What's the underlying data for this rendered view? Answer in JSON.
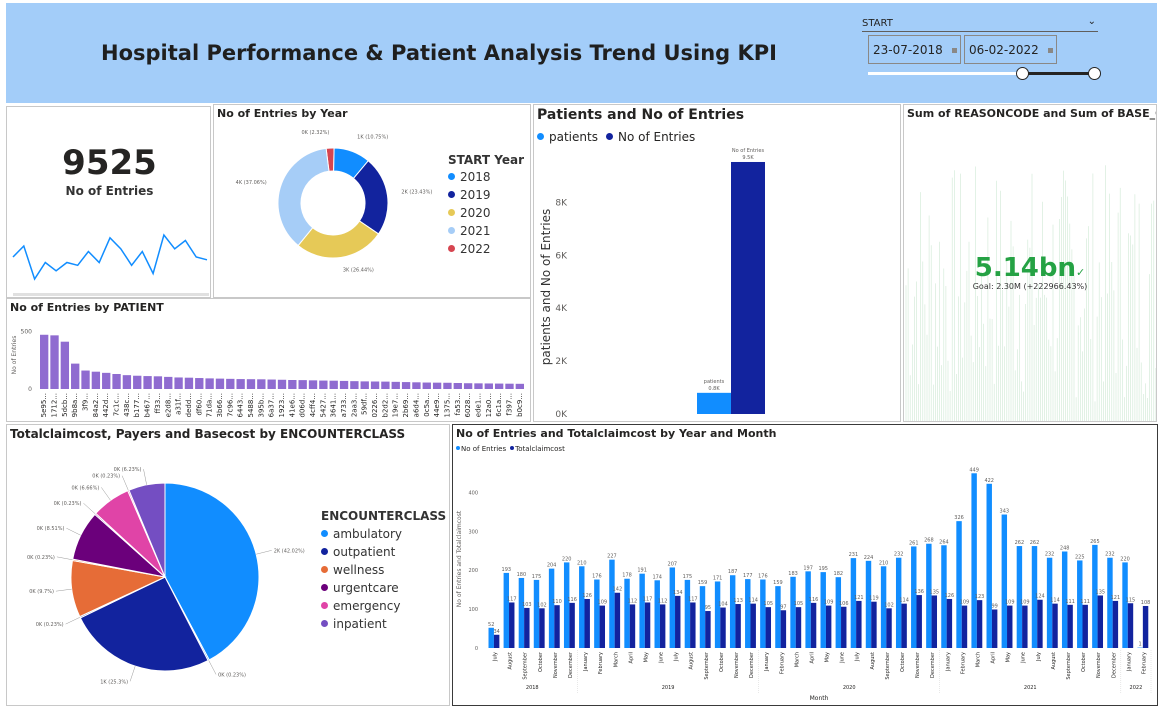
{
  "header": {
    "title": "Hospital Performance & Patient Analysis Trend Using KPI",
    "slicer_label": "START",
    "date_from": "23-07-2018",
    "date_to": "06-02-2022",
    "slider_from_fraction": 0.68,
    "slider_to_fraction": 1.0
  },
  "colors": {
    "header_bg": "#a3cdf9",
    "blue_light": "#118dff",
    "blue_dark": "#12239e",
    "purple": "#8f6bd0",
    "green": "#25a244"
  },
  "kpi_card": {
    "value": "9525",
    "label": "No of Entries",
    "sparkline": [
      38,
      42,
      30,
      36,
      33,
      36,
      35,
      40,
      36,
      45,
      41,
      35,
      40,
      32,
      46,
      41,
      44,
      38,
      37
    ]
  },
  "sum_card": {
    "title": "Sum of REASONCODE and Sum of BASE_COST",
    "value": "5.14bn",
    "goal": "Goal: 2.30M (+222966.43%)"
  },
  "chart_data": [
    {
      "id": "entries_by_year",
      "type": "pie",
      "donut": true,
      "title": "No of Entries by Year",
      "legend_title": "START Year",
      "slices": [
        {
          "label": "2018",
          "value": 10.75,
          "text": "1K (10.75%)",
          "color": "#118dff"
        },
        {
          "label": "2019",
          "value": 23.43,
          "text": "2K (23.43%)",
          "color": "#12239e"
        },
        {
          "label": "2020",
          "value": 26.44,
          "text": "3K (26.44%)",
          "color": "#e6c957"
        },
        {
          "label": "2021",
          "value": 37.06,
          "text": "4K (37.06%)",
          "color": "#a6cdf7"
        },
        {
          "label": "2022",
          "value": 2.32,
          "text": "0K (2.32%)",
          "color": "#d64550"
        }
      ]
    },
    {
      "id": "patients_entries",
      "type": "bar",
      "title": "Patients and No of Entries",
      "ylabel": "patients and No of Entries",
      "ylim": [
        0,
        9600
      ],
      "yticks": [
        "0K",
        "2K",
        "4K",
        "6K",
        "8K"
      ],
      "ytick_values": [
        0,
        2000,
        4000,
        6000,
        8000
      ],
      "legend": [
        {
          "name": "patients",
          "color": "#118dff"
        },
        {
          "name": "No of Entries",
          "color": "#12239e"
        }
      ],
      "bars": [
        {
          "name": "patients",
          "value": 800,
          "label1": "patients",
          "label2": "0.8K",
          "color": "#118dff"
        },
        {
          "name": "No of Entries",
          "value": 9525,
          "label1": "No of Entries",
          "label2": "9.5K",
          "color": "#12239e"
        }
      ]
    },
    {
      "id": "entries_by_patient",
      "type": "bar",
      "title": "No of Entries by PATIENT",
      "ylabel": "No of Entries",
      "ylim": [
        0,
        520
      ],
      "yticks": [
        "0",
        "500"
      ],
      "ytick_values": [
        0,
        500
      ],
      "categories": [
        "5e95...",
        "1712...",
        "5dcb...",
        "9b8a...",
        "3f9...",
        "84a2...",
        "442d...",
        "7c1c...",
        "438c...",
        "b177...",
        "b467...",
        "ff33...",
        "e2d8...",
        "a31f...",
        "dedd...",
        "df60...",
        "71da...",
        "3b66...",
        "7c96...",
        "6443...",
        "5488...",
        "395b...",
        "6a37...",
        "1923...",
        "41e6...",
        "d06d...",
        "4cff4...",
        "5427...",
        "3641...",
        "a733...",
        "2aa3...",
        "59df...",
        "0226...",
        "b2d2...",
        "19e7...",
        "2b69...",
        "a6d4...",
        "0c5a...",
        "44e9...",
        "1375...",
        "fa53...",
        "6028...",
        "ede1...",
        "12a0...",
        "6c1a...",
        "f397...",
        "b0c9..."
      ],
      "values": [
        470,
        465,
        410,
        220,
        160,
        150,
        140,
        130,
        120,
        115,
        112,
        110,
        105,
        100,
        98,
        95,
        92,
        90,
        88,
        86,
        85,
        84,
        82,
        80,
        78,
        77,
        75,
        73,
        72,
        70,
        68,
        66,
        65,
        64,
        62,
        60,
        58,
        56,
        55,
        54,
        52,
        50,
        49,
        48,
        47,
        46,
        45
      ]
    },
    {
      "id": "encounterclass",
      "type": "pie",
      "title": "Totalclaimcost, Payers and Basecost by ENCOUNTERCLASS",
      "legend_title": "ENCOUNTERCLASS",
      "legend": [
        {
          "name": "ambulatory",
          "color": "#118dff"
        },
        {
          "name": "outpatient",
          "color": "#12239e"
        },
        {
          "name": "wellness",
          "color": "#e66c37"
        },
        {
          "name": "urgentcare",
          "color": "#6b007b"
        },
        {
          "name": "emergency",
          "color": "#e044a7"
        },
        {
          "name": "inpatient",
          "color": "#744ec2"
        }
      ],
      "slices": [
        {
          "label": "ambulatory",
          "value": 42.02,
          "text": "2K (42.02%)",
          "color": "#118dff"
        },
        {
          "label": "outpatient",
          "value": 0.23,
          "text": "0K (0.23%)",
          "color": "#118dff"
        },
        {
          "label": "outpatient",
          "value": 25.3,
          "text": "1K (25.3%)",
          "color": "#12239e"
        },
        {
          "label": "wellness",
          "value": 0.23,
          "text": "0K (0.23%)",
          "color": "#12239e"
        },
        {
          "label": "wellness",
          "value": 9.7,
          "text": "0K (9.7%)",
          "color": "#e66c37"
        },
        {
          "label": "urgentcare",
          "value": 0.23,
          "text": "0K (0.23%)",
          "color": "#e66c37"
        },
        {
          "label": "urgentcare",
          "value": 8.51,
          "text": "0K (8.51%)",
          "color": "#6b007b"
        },
        {
          "label": "emergency",
          "value": 0.23,
          "text": "0K (0.23%)",
          "color": "#6b007b"
        },
        {
          "label": "emergency",
          "value": 6.66,
          "text": "0K (6.66%)",
          "color": "#e044a7"
        },
        {
          "label": "inpatient",
          "value": 0.23,
          "text": "0K (0.23%)",
          "color": "#e044a7"
        },
        {
          "label": "inpatient",
          "value": 6.23,
          "text": "0K (6.23%)",
          "color": "#744ec2"
        }
      ]
    },
    {
      "id": "entries_claim_by_month",
      "type": "bar",
      "title": "No of Entries and Totalclaimcost by Year and Month",
      "xlabel": "Month",
      "ylabel": "No of Entries and Totalclaimcost",
      "ylim": [
        0,
        460
      ],
      "yticks": [
        "0",
        "100",
        "200",
        "300",
        "400"
      ],
      "ytick_values": [
        0,
        100,
        200,
        300,
        400
      ],
      "legend": [
        {
          "name": "No of Entries",
          "color": "#118dff"
        },
        {
          "name": "Totalclaimcost",
          "color": "#12239e"
        }
      ],
      "years": [
        {
          "label": "2018",
          "count": 6
        },
        {
          "label": "2019",
          "count": 12
        },
        {
          "label": "2020",
          "count": 12
        },
        {
          "label": "2021",
          "count": 12
        },
        {
          "label": "2022",
          "count": 2
        }
      ],
      "categories": [
        "July",
        "August",
        "September",
        "October",
        "November",
        "December",
        "January",
        "February",
        "March",
        "April",
        "May",
        "June",
        "July",
        "August",
        "September",
        "October",
        "November",
        "December",
        "January",
        "February",
        "March",
        "April",
        "May",
        "June",
        "July",
        "August",
        "September",
        "October",
        "November",
        "December",
        "January",
        "February",
        "March",
        "April",
        "May",
        "June",
        "July",
        "August",
        "September",
        "October",
        "November",
        "December",
        "January",
        "February"
      ],
      "series": [
        {
          "name": "No of Entries",
          "values": [
            52,
            193,
            180,
            175,
            204,
            220,
            210,
            176,
            227,
            178,
            191,
            174,
            207,
            175,
            159,
            171,
            187,
            177,
            176,
            159,
            183,
            197,
            195,
            182,
            231,
            224,
            210,
            232,
            261,
            268,
            264,
            326,
            449,
            422,
            343,
            262,
            262,
            232,
            248,
            225,
            265,
            232,
            220,
            1
          ]
        },
        {
          "name": "Totalclaimcost",
          "values": [
            34,
            117,
            103,
            102,
            110,
            116,
            126,
            109,
            142,
            112,
            117,
            112,
            134,
            117,
            95,
            104,
            113,
            114,
            105,
            97,
            105,
            116,
            109,
            106,
            121,
            119,
            102,
            114,
            136,
            135,
            126,
            109,
            123,
            99,
            109,
            109,
            124,
            114,
            111,
            111,
            135,
            121,
            115,
            108
          ]
        }
      ]
    }
  ]
}
